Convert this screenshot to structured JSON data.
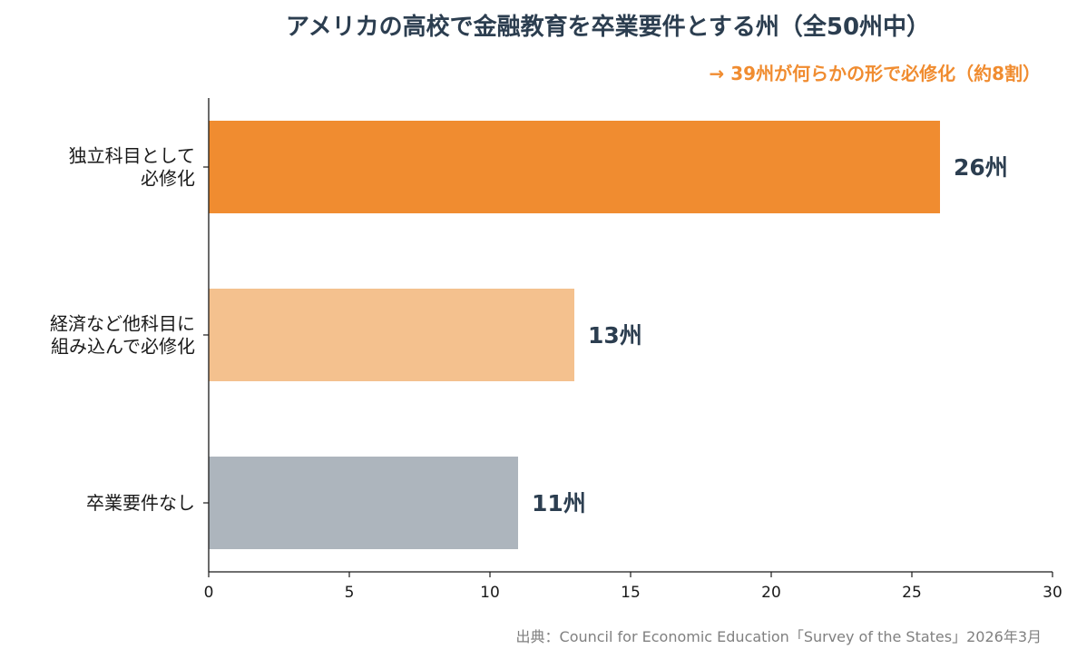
{
  "chart_data": {
    "type": "bar",
    "orientation": "horizontal",
    "title": "アメリカの高校で金融教育を卒業要件とする州（全50州中）",
    "annotation": "→ 39州が何らかの形で必修化（約8割）",
    "categories": [
      [
        "独立科目として",
        "必修化"
      ],
      [
        "経済など他科目に",
        "組み込んで必修化"
      ],
      [
        "卒業要件なし"
      ]
    ],
    "values": [
      26,
      13,
      11
    ],
    "value_labels": [
      "26州",
      "13州",
      "11州"
    ],
    "colors": [
      "#f08c30",
      "#f4c18e",
      "#adb5bd"
    ],
    "xlim": [
      0,
      30
    ],
    "xticks": [
      "0",
      "5",
      "10",
      "15",
      "20",
      "25",
      "30"
    ],
    "xtick_values": [
      0,
      5,
      10,
      15,
      20,
      25,
      30
    ],
    "grid": false,
    "source": "出典：Council for Economic Education「Survey of the States」2026年3月"
  }
}
